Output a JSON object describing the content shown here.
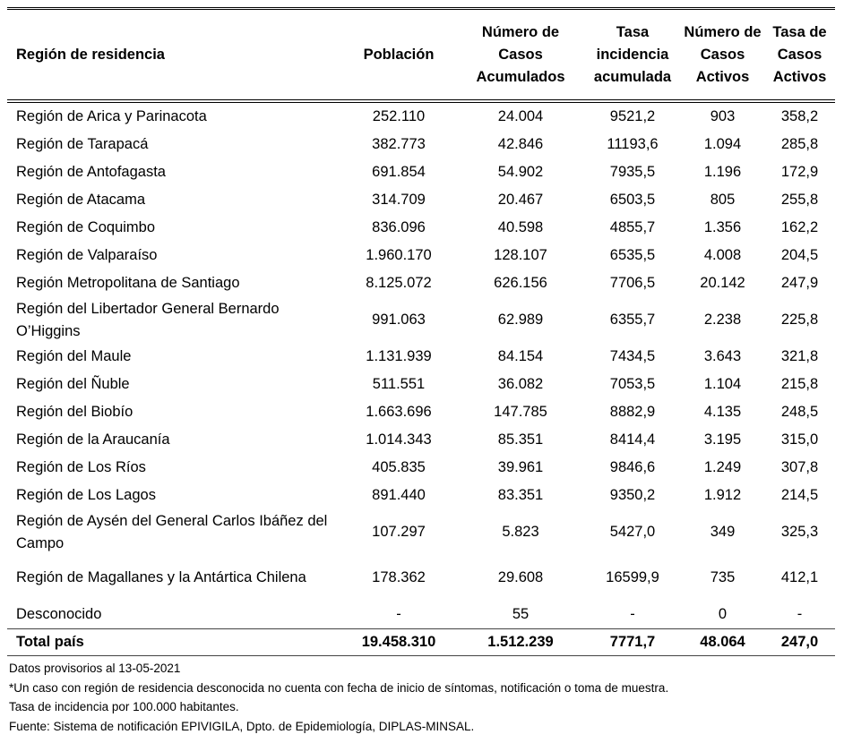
{
  "headers": [
    "Región de residencia",
    "Población",
    "Número de Casos Acumulados",
    "Tasa incidencia acumulada",
    "Número de Casos Activos",
    "Tasa de Casos Activos"
  ],
  "rows": [
    [
      "Región de Arica y Parinacota",
      "252.110",
      "24.004",
      "9521,2",
      "903",
      "358,2"
    ],
    [
      "Región de Tarapacá",
      "382.773",
      "42.846",
      "11193,6",
      "1.094",
      "285,8"
    ],
    [
      "Región de Antofagasta",
      "691.854",
      "54.902",
      "7935,5",
      "1.196",
      "172,9"
    ],
    [
      "Región de Atacama",
      "314.709",
      "20.467",
      "6503,5",
      "805",
      "255,8"
    ],
    [
      "Región de Coquimbo",
      "836.096",
      "40.598",
      "4855,7",
      "1.356",
      "162,2"
    ],
    [
      "Región de Valparaíso",
      "1.960.170",
      "128.107",
      "6535,5",
      "4.008",
      "204,5"
    ],
    [
      "Región Metropolitana de Santiago",
      "8.125.072",
      "626.156",
      "7706,5",
      "20.142",
      "247,9"
    ],
    [
      "Región del Libertador General Bernardo O’Higgins",
      "991.063",
      "62.989",
      "6355,7",
      "2.238",
      "225,8"
    ],
    [
      "Región del Maule",
      "1.131.939",
      "84.154",
      "7434,5",
      "3.643",
      "321,8"
    ],
    [
      "Región del Ñuble",
      "511.551",
      "36.082",
      "7053,5",
      "1.104",
      "215,8"
    ],
    [
      "Región del Biobío",
      "1.663.696",
      "147.785",
      "8882,9",
      "4.135",
      "248,5"
    ],
    [
      "Región de la Araucanía",
      "1.014.343",
      "85.351",
      "8414,4",
      "3.195",
      "315,0"
    ],
    [
      "Región de Los Ríos",
      "405.835",
      "39.961",
      "9846,6",
      "1.249",
      "307,8"
    ],
    [
      "Región de Los Lagos",
      "891.440",
      "83.351",
      "9350,2",
      "1.912",
      "214,5"
    ],
    [
      "Región de Aysén del General Carlos Ibáñez del Campo",
      "107.297",
      "5.823",
      "5427,0",
      "349",
      "325,3"
    ],
    [
      "Región de Magallanes y la Antártica Chilena",
      "178.362",
      "29.608",
      "16599,9",
      "735",
      "412,1"
    ],
    [
      "Desconocido",
      "-",
      "55",
      "-",
      "0",
      "-"
    ]
  ],
  "total": [
    "Total país",
    "19.458.310",
    "1.512.239",
    "7771,7",
    "48.064",
    "247,0"
  ],
  "notes": [
    "Datos provisorios al 13-05-2021",
    "*Un caso con región de residencia desconocida no cuenta con fecha de inicio de síntomas, notificación o toma de muestra.",
    "Tasa de incidencia por 100.000 habitantes.",
    "Fuente: Sistema de notificación EPIVIGILA, Dpto. de Epidemiología, DIPLAS-MINSAL."
  ]
}
